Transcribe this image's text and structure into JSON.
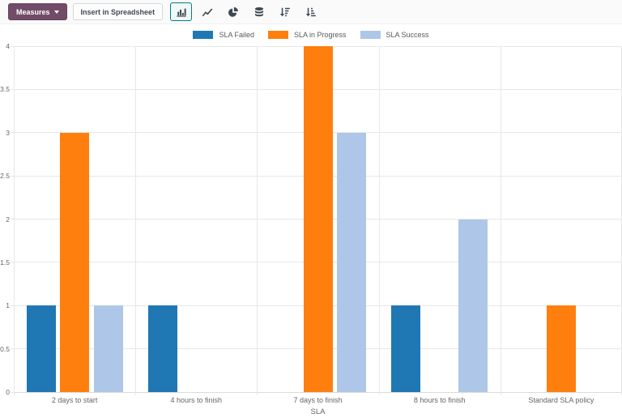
{
  "toolbar": {
    "measures_label": "Measures",
    "insert_spreadsheet_label": "Insert in Spreadsheet",
    "view_icons": [
      "bar-chart-icon",
      "line-chart-icon",
      "pie-chart-icon",
      "stacked-database-icon",
      "sort-descending-icon",
      "sort-ascending-icon"
    ],
    "active_view": "bar-chart"
  },
  "colors": {
    "primary_button": "#714B67",
    "active_view_border": "#017e84",
    "icon": "#3d4852",
    "gridline": "#e7e7e7",
    "axis_text": "#666666",
    "sla_failed": "#1f77b4",
    "sla_in_progress": "#ff7f0e",
    "sla_success": "#aec7e8"
  },
  "chart_data": {
    "type": "bar",
    "title": "",
    "xlabel": "SLA",
    "ylabel": "",
    "ylim": [
      0,
      4
    ],
    "ytick_step": 0.5,
    "grid": true,
    "legend_position": "top",
    "categories": [
      "2 days to start",
      "4 hours to finish",
      "7 days to finish",
      "8 hours to finish",
      "Standard SLA policy"
    ],
    "series": [
      {
        "name": "SLA Failed",
        "color": "#1f77b4",
        "values": [
          1,
          1,
          0,
          1,
          0
        ]
      },
      {
        "name": "SLA in Progress",
        "color": "#ff7f0e",
        "values": [
          3,
          0,
          4,
          0,
          1
        ]
      },
      {
        "name": "SLA Success",
        "color": "#aec7e8",
        "values": [
          1,
          0,
          3,
          2,
          0
        ]
      }
    ]
  }
}
